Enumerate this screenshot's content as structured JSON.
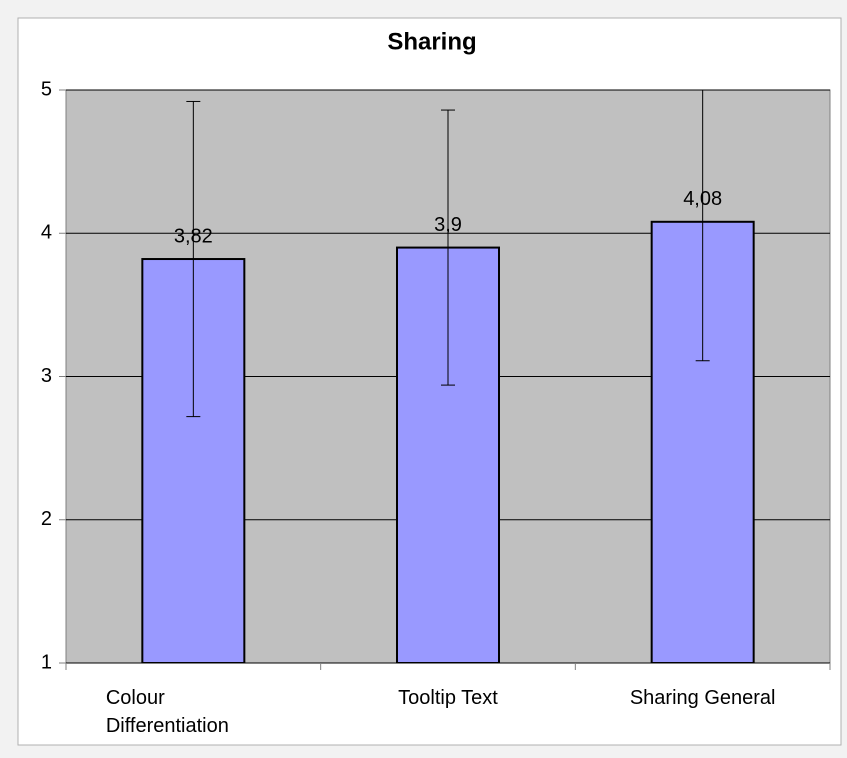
{
  "chart_data": {
    "type": "bar",
    "title": "Sharing",
    "categories": [
      "Colour Differentiation",
      "Tooltip Text",
      "Sharing General"
    ],
    "values": [
      3.82,
      3.9,
      4.08
    ],
    "value_labels": [
      "3,82",
      "3,9",
      "4,08"
    ],
    "errors": [
      1.1,
      0.96,
      0.97
    ],
    "color": "#9999ff",
    "ylim": [
      1,
      5
    ],
    "yticks": [
      1,
      2,
      3,
      4,
      5
    ],
    "grid": true
  }
}
